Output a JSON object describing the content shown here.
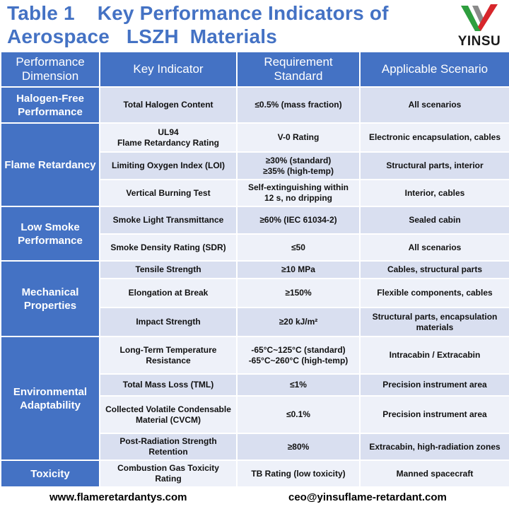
{
  "title": {
    "line1": "Table 1    Key Performance Indicators of",
    "line2": "Aerospace   LSZH  Materials"
  },
  "logo": {
    "text": "YINSU",
    "colors": {
      "green": "#2e9e3e",
      "red": "#d7262b",
      "gray": "#8a8a8a"
    }
  },
  "colors": {
    "header_blue": "#4472c4",
    "row_dark": "#d9dff0",
    "row_light": "#eef1f9",
    "title_blue": "#4472c4"
  },
  "table": {
    "headers": [
      "Performance Dimension",
      "Key Indicator",
      "Requirement Standard",
      "Applicable Scenario"
    ],
    "groups": [
      {
        "dimension": "Halogen-Free Performance",
        "rows": [
          {
            "indicator": "Total Halogen Content",
            "requirement": "≤0.5% (mass fraction)",
            "scenario": "All scenarios"
          }
        ]
      },
      {
        "dimension": "Flame Retardancy",
        "rows": [
          {
            "indicator": "UL94\nFlame Retardancy Rating",
            "requirement": "V-0 Rating",
            "scenario": "Electronic encapsulation, cables"
          },
          {
            "indicator": "Limiting Oxygen Index (LOI)",
            "requirement": "≥30% (standard)\n≥35% (high-temp)",
            "scenario": "Structural parts, interior"
          },
          {
            "indicator": "Vertical Burning Test",
            "requirement": "Self-extinguishing within\n12 s, no dripping",
            "scenario": "Interior, cables"
          }
        ]
      },
      {
        "dimension": "Low Smoke Performance",
        "rows": [
          {
            "indicator": "Smoke Light Transmittance",
            "requirement": "≥60% (IEC 61034-2)",
            "scenario": "Sealed cabin"
          },
          {
            "indicator": "Smoke Density Rating (SDR)",
            "requirement": "≤50",
            "scenario": "All scenarios"
          }
        ]
      },
      {
        "dimension": "Mechanical Properties",
        "rows": [
          {
            "indicator": "Tensile Strength",
            "requirement": "≥10 MPa",
            "scenario": "Cables, structural parts"
          },
          {
            "indicator": "Elongation at Break",
            "requirement": "≥150%",
            "scenario": "Flexible components, cables"
          },
          {
            "indicator": "Impact Strength",
            "requirement": "≥20 kJ/m²",
            "scenario": "Structural parts, encapsulation materials"
          }
        ]
      },
      {
        "dimension": "Environmental Adaptability",
        "rows": [
          {
            "indicator": "Long-Term Temperature Resistance",
            "requirement": "-65°C~125°C (standard)\n-65°C~260°C (high-temp)",
            "scenario": "Intracabin / Extracabin"
          },
          {
            "indicator": "Total Mass Loss (TML)",
            "requirement": "≤1%",
            "scenario": "Precision instrument area"
          },
          {
            "indicator": "Collected Volatile Condensable Material (CVCM)",
            "requirement": "≤0.1%",
            "scenario": "Precision instrument area"
          },
          {
            "indicator": "Post-Radiation Strength Retention",
            "requirement": "≥80%",
            "scenario": "Extracabin, high-radiation zones"
          }
        ]
      },
      {
        "dimension": "Toxicity",
        "rows": [
          {
            "indicator": "Combustion Gas Toxicity Rating",
            "requirement": "TB Rating (low toxicity)",
            "scenario": "Manned spacecraft"
          }
        ]
      }
    ]
  },
  "footer": {
    "website": "www.flameretardantys.com",
    "email": "ceo@yinsuflame-retardant.com"
  }
}
